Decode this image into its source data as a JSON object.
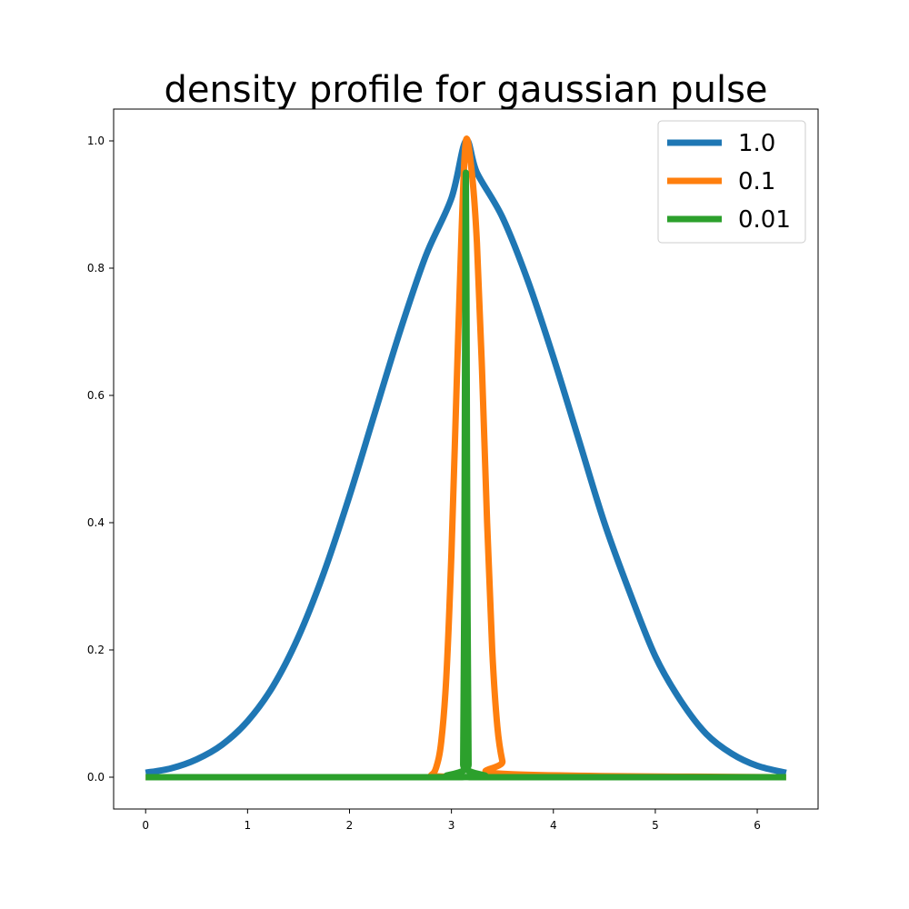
{
  "chart_data": {
    "type": "line",
    "title": "density profile for gaussian pulse",
    "xlabel": "",
    "ylabel": "",
    "xlim": [
      -0.314,
      6.597
    ],
    "ylim": [
      -0.05,
      1.05
    ],
    "x_ticks": [
      "0",
      "1",
      "2",
      "3",
      "4",
      "5",
      "6"
    ],
    "x_tick_values": [
      0,
      1,
      2,
      3,
      4,
      5,
      6
    ],
    "y_ticks": [
      "0.0",
      "0.2",
      "0.4",
      "0.6",
      "0.8",
      "1.0"
    ],
    "y_tick_values": [
      0,
      0.2,
      0.4,
      0.6,
      0.8,
      1.0
    ],
    "grid": false,
    "legend_position": "top-right",
    "series": [
      {
        "name": "1.0",
        "color": "#1f77b4",
        "x": [
          0,
          0.25,
          0.5,
          0.75,
          1.0,
          1.25,
          1.5,
          1.75,
          2.0,
          2.25,
          2.5,
          2.75,
          3.0,
          3.1416,
          3.25,
          3.5,
          3.75,
          4.0,
          4.25,
          4.5,
          4.75,
          5.0,
          5.25,
          5.5,
          5.75,
          6.0,
          6.2832
        ],
        "y": [
          0.007,
          0.014,
          0.028,
          0.051,
          0.088,
          0.143,
          0.221,
          0.322,
          0.442,
          0.573,
          0.703,
          0.82,
          0.91,
          1.0,
          0.95,
          0.88,
          0.78,
          0.66,
          0.53,
          0.4,
          0.29,
          0.19,
          0.12,
          0.068,
          0.037,
          0.018,
          0.007
        ]
      },
      {
        "name": "0.1",
        "color": "#ff7f0e",
        "x": [
          0,
          2.75,
          2.8,
          2.85,
          2.9,
          2.95,
          3.0,
          3.05,
          3.1,
          3.1416,
          3.2,
          3.25,
          3.3,
          3.35,
          3.4,
          3.45,
          3.5,
          3.55,
          6.2832
        ],
        "y": [
          0,
          0.0,
          0.003,
          0.015,
          0.056,
          0.158,
          0.352,
          0.61,
          0.86,
          1.0,
          0.95,
          0.84,
          0.64,
          0.4,
          0.2,
          0.08,
          0.025,
          0.005,
          0
        ]
      },
      {
        "name": "0.01",
        "color": "#2ca02c",
        "x": [
          0,
          3.1,
          3.115,
          3.125,
          3.133,
          3.1416,
          3.15,
          3.158,
          3.168,
          3.183,
          6.2832
        ],
        "y": [
          0,
          0.0,
          0.02,
          0.26,
          0.63,
          0.95,
          0.63,
          0.26,
          0.02,
          0.0,
          0
        ]
      }
    ]
  }
}
